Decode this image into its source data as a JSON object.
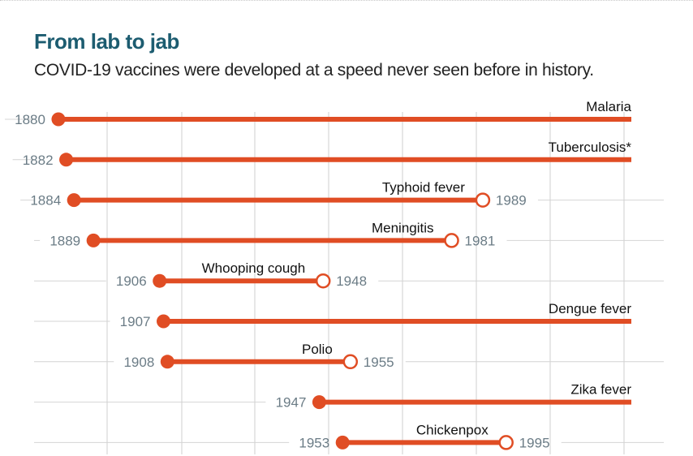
{
  "title": "From lab to jab",
  "subtitle": "COVID-19 vaccines were developed at a speed never seen before in history.",
  "chart_data": {
    "type": "dumbbell",
    "title": "From lab to jab",
    "subtitle": "COVID-19 vaccines were developed at a speed never seen before in history.",
    "xlabel": "",
    "ylabel": "",
    "xlim": [
      1865,
      2043
    ],
    "grid": true,
    "colors": {
      "bar": "#e04d24",
      "title": "#1c5c70",
      "year_label": "#6b7c86",
      "grid": "#cfcfcf"
    },
    "series": [
      {
        "name": "Malaria",
        "start": 1880,
        "end": null,
        "start_label": "1880",
        "end_label": ""
      },
      {
        "name": "Tuberculosis*",
        "start": 1882,
        "end": null,
        "start_label": "1882",
        "end_label": ""
      },
      {
        "name": "Typhoid fever",
        "start": 1884,
        "end": 1989,
        "start_label": "1884",
        "end_label": "1989"
      },
      {
        "name": "Meningitis",
        "start": 1889,
        "end": 1981,
        "start_label": "1889",
        "end_label": "1981"
      },
      {
        "name": "Whooping cough",
        "start": 1906,
        "end": 1948,
        "start_label": "1906",
        "end_label": "1948"
      },
      {
        "name": "Dengue fever",
        "start": 1907,
        "end": null,
        "start_label": "1907",
        "end_label": ""
      },
      {
        "name": "Polio",
        "start": 1908,
        "end": 1955,
        "start_label": "1908",
        "end_label": "1955"
      },
      {
        "name": "Zika fever",
        "start": 1947,
        "end": null,
        "start_label": "1947",
        "end_label": ""
      },
      {
        "name": "Chickenpox",
        "start": 1953,
        "end": 1995,
        "start_label": "1953",
        "end_label": "1995"
      }
    ]
  }
}
